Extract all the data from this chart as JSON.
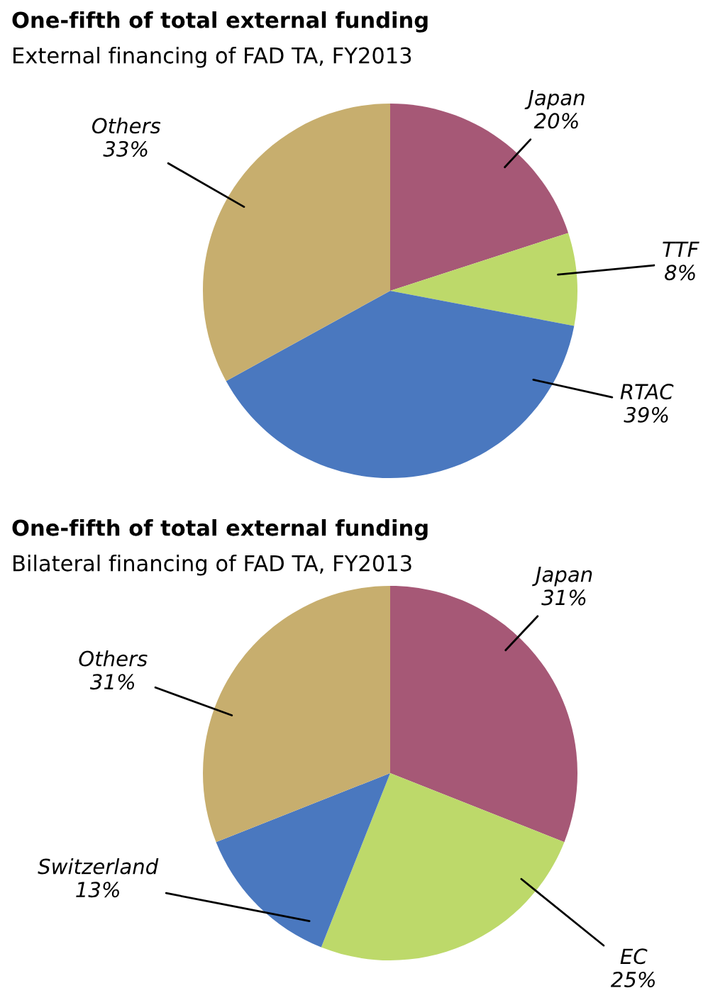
{
  "chart_data": [
    {
      "type": "pie",
      "title": "One-fifth of total external funding",
      "subtitle": "External financing of FAD TA, FY2013",
      "categories": [
        "Japan",
        "TTF",
        "RTAC",
        "Others"
      ],
      "values": [
        20,
        8,
        39,
        33
      ],
      "value_labels": [
        "20%",
        "8%",
        "39%",
        "33%"
      ],
      "colors": [
        "#a65876",
        "#bdd96a",
        "#4a78bf",
        "#c7ae6e"
      ]
    },
    {
      "type": "pie",
      "title": "One-fifth of total external funding",
      "subtitle": "Bilateral financing of FAD TA, FY2013",
      "categories": [
        "Japan",
        "EC",
        "Switzerland",
        "Others"
      ],
      "values": [
        31,
        25,
        13,
        31
      ],
      "value_labels": [
        "31%",
        "25%",
        "13%",
        "31%"
      ],
      "colors": [
        "#a65876",
        "#bdd96a",
        "#4a78bf",
        "#c7ae6e"
      ]
    }
  ]
}
